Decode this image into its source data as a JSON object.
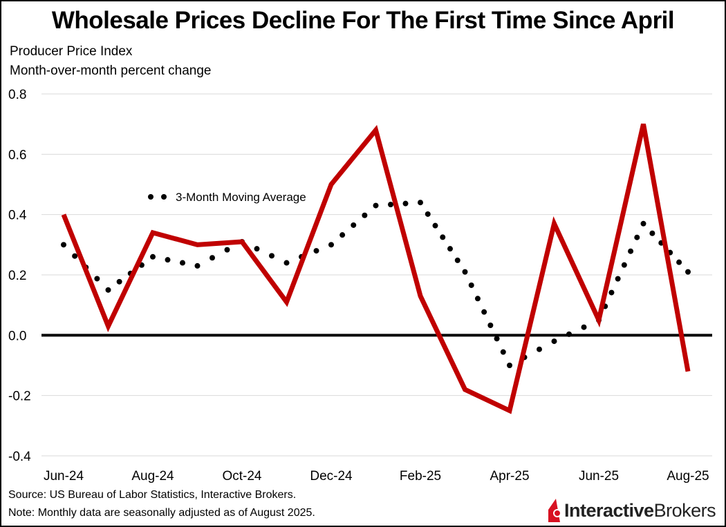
{
  "chart_data": {
    "type": "line",
    "title": "Wholesale Prices Decline For The First Time Since April",
    "subtitle": [
      "Producer Price Index",
      "Month-over-month percent change"
    ],
    "x": [
      "Jun-24",
      "Jul-24",
      "Aug-24",
      "Sep-24",
      "Oct-24",
      "Nov-24",
      "Dec-24",
      "Jan-25",
      "Feb-25",
      "Mar-25",
      "Apr-25",
      "May-25",
      "Jun-25",
      "Jul-25",
      "Aug-25"
    ],
    "x_tick_labels": [
      "Jun-24",
      "Aug-24",
      "Oct-24",
      "Dec-24",
      "Feb-25",
      "Apr-25",
      "Jun-25",
      "Aug-25"
    ],
    "y_ticks": [
      "0.8",
      "0.6",
      "0.4",
      "0.2",
      "0.0",
      "-0.2",
      "-0.4"
    ],
    "ylim": [
      -0.4,
      0.8
    ],
    "grid": "horizontal",
    "series": [
      {
        "values": [
          0.4,
          0.03,
          0.34,
          0.3,
          0.31,
          0.11,
          0.5,
          0.68,
          0.13,
          -0.18,
          -0.25,
          0.37,
          0.05,
          0.7,
          -0.12
        ],
        "color": "#C00000",
        "style": "solid"
      },
      {
        "name": "3-Month Moving Average",
        "values": [
          0.3,
          0.15,
          0.26,
          0.23,
          0.31,
          0.24,
          0.3,
          0.43,
          0.44,
          0.21,
          -0.1,
          -0.02,
          0.05,
          0.37,
          0.21
        ],
        "color": "#000000",
        "style": "dotted"
      }
    ]
  },
  "footer": {
    "source": "Source: US Bureau of Labor Statistics, Interactive Brokers.",
    "note": "Note: Monthly data are seasonally adjusted as of August 2025."
  },
  "logo": {
    "text_bold": "Interactive",
    "text_regular": "Brokers",
    "color": "#D81222"
  }
}
